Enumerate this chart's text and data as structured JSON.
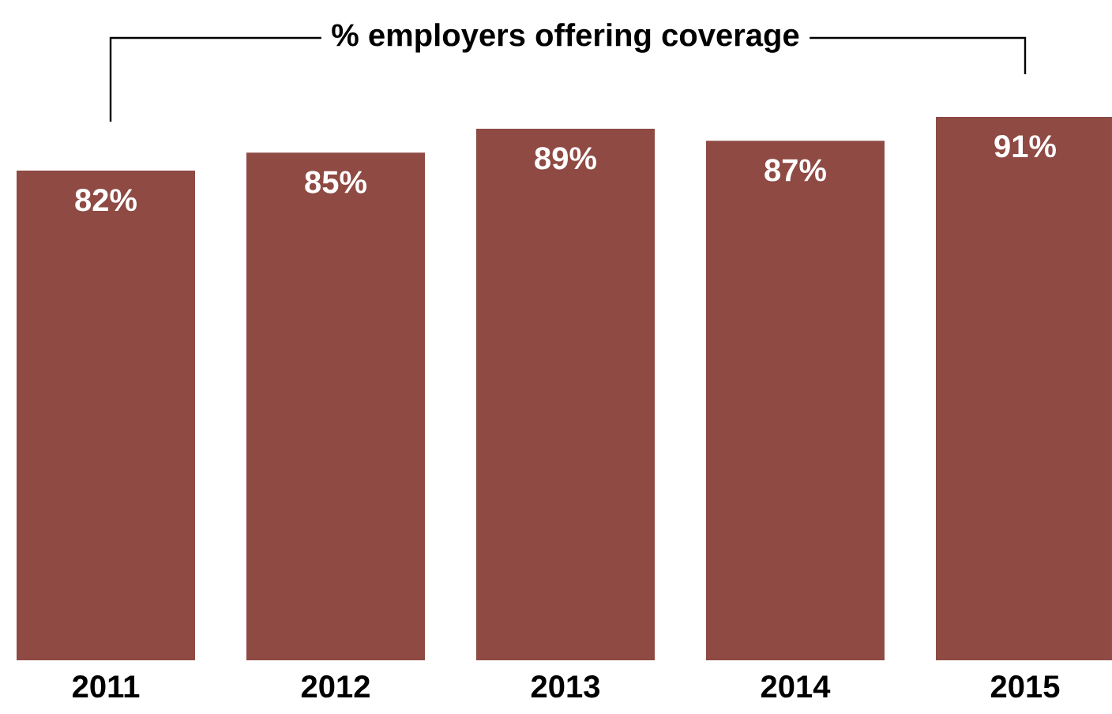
{
  "chart_data": {
    "type": "bar",
    "title": "% employers offering coverage",
    "categories": [
      "2011",
      "2012",
      "2013",
      "2014",
      "2015"
    ],
    "values": [
      82,
      85,
      89,
      87,
      91
    ],
    "value_labels": [
      "82%",
      "85%",
      "89%",
      "87%",
      "91%"
    ],
    "color": "#8e4a43"
  }
}
